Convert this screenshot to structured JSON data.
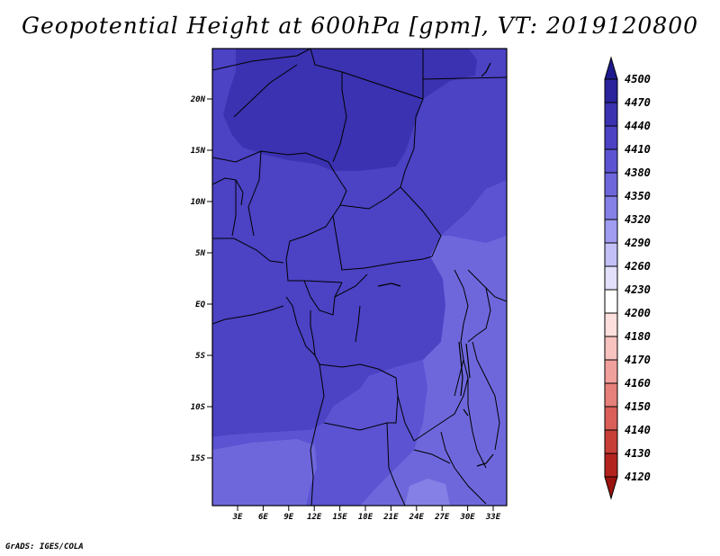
{
  "title": "Geopotential Height at 600hPa [gpm], VT: 2019120800",
  "credit": "GrADS: IGES/COLA",
  "map": {
    "lat_labels": [
      "20N",
      "15N",
      "10N",
      "5N",
      "EQ",
      "5S",
      "10S",
      "15S"
    ],
    "lon_labels": [
      "3E",
      "6E",
      "9E",
      "12E",
      "15E",
      "18E",
      "21E",
      "24E",
      "27E",
      "30E",
      "33E"
    ]
  },
  "colorbar": {
    "levels": [
      "4500",
      "4470",
      "4440",
      "4410",
      "4380",
      "4350",
      "4320",
      "4290",
      "4260",
      "4230",
      "4200",
      "4180",
      "4170",
      "4160",
      "4150",
      "4140",
      "4130",
      "4120"
    ],
    "colors": [
      "#1e1a8c",
      "#2a239c",
      "#3a32b0",
      "#4b42c4",
      "#5b53d2",
      "#6e67dc",
      "#8580e6",
      "#a09cf0",
      "#c2c0f6",
      "#e2e0fb",
      "#ffffff",
      "#fde0de",
      "#f8c2bf",
      "#f0a09c",
      "#e6807a",
      "#d95f58",
      "#c83f38",
      "#b3241f",
      "#9a1410"
    ]
  }
}
